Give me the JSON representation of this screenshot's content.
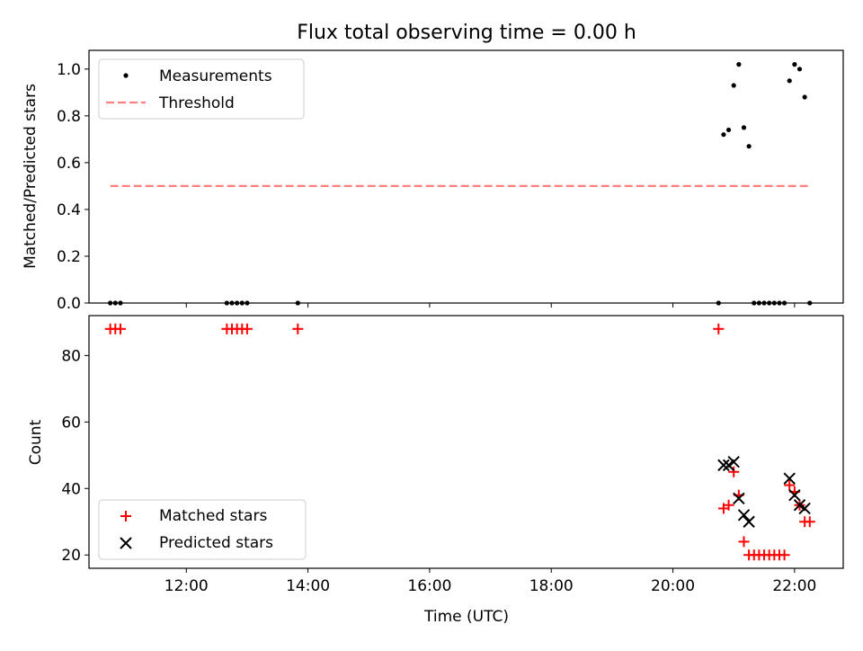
{
  "chart_data": [
    {
      "type": "scatter",
      "title": "Flux total observing time = 0.00 h",
      "xlabel": "",
      "ylabel": "Matched/Predicted stars",
      "xlim": [
        "10:24",
        "22:48"
      ],
      "ylim": [
        0,
        1.08
      ],
      "yticks": [
        0.0,
        0.2,
        0.4,
        0.6,
        0.8,
        1.0
      ],
      "ytick_labels": [
        "0.0",
        "0.2",
        "0.4",
        "0.6",
        "0.8",
        "1.0"
      ],
      "grid": false,
      "legend": {
        "position": "upper-left"
      },
      "series": [
        {
          "name": "Measurements",
          "kind": "dot",
          "color": "#000000",
          "points": [
            [
              "10:45",
              0.0
            ],
            [
              "10:50",
              0.0
            ],
            [
              "10:55",
              0.0
            ],
            [
              "12:40",
              0.0
            ],
            [
              "12:45",
              0.0
            ],
            [
              "12:50",
              0.0
            ],
            [
              "12:55",
              0.0
            ],
            [
              "13:00",
              0.0
            ],
            [
              "13:50",
              0.0
            ],
            [
              "20:45",
              0.0
            ],
            [
              "20:50",
              0.72
            ],
            [
              "20:55",
              0.74
            ],
            [
              "21:00",
              0.93
            ],
            [
              "21:05",
              1.02
            ],
            [
              "21:10",
              0.75
            ],
            [
              "21:15",
              0.67
            ],
            [
              "21:20",
              0.0
            ],
            [
              "21:25",
              0.0
            ],
            [
              "21:30",
              0.0
            ],
            [
              "21:35",
              0.0
            ],
            [
              "21:40",
              0.0
            ],
            [
              "21:45",
              0.0
            ],
            [
              "21:50",
              0.0
            ],
            [
              "21:55",
              0.95
            ],
            [
              "22:00",
              1.02
            ],
            [
              "22:05",
              1.0
            ],
            [
              "22:10",
              0.88
            ],
            [
              "22:15",
              0.0
            ]
          ]
        },
        {
          "name": "Threshold",
          "kind": "dashed-line",
          "color": "#ff7f7f",
          "points": [
            [
              "10:45",
              0.5
            ],
            [
              "22:15",
              0.5
            ]
          ]
        }
      ]
    },
    {
      "type": "scatter",
      "title": "",
      "xlabel": "Time (UTC)",
      "ylabel": "Count",
      "xlim": [
        "10:24",
        "22:48"
      ],
      "ylim": [
        16,
        92
      ],
      "xticks": [
        "12:00",
        "14:00",
        "16:00",
        "18:00",
        "20:00",
        "22:00"
      ],
      "yticks": [
        20,
        40,
        60,
        80
      ],
      "ytick_labels": [
        "20",
        "40",
        "60",
        "80"
      ],
      "grid": false,
      "legend": {
        "position": "lower-left"
      },
      "series": [
        {
          "name": "Matched stars",
          "kind": "plus",
          "color": "#ff0000",
          "points": [
            [
              "10:45",
              88
            ],
            [
              "10:50",
              88
            ],
            [
              "10:55",
              88
            ],
            [
              "12:40",
              88
            ],
            [
              "12:45",
              88
            ],
            [
              "12:50",
              88
            ],
            [
              "12:55",
              88
            ],
            [
              "13:00",
              88
            ],
            [
              "13:50",
              88
            ],
            [
              "20:45",
              88
            ],
            [
              "20:50",
              34
            ],
            [
              "20:55",
              35
            ],
            [
              "21:00",
              45
            ],
            [
              "21:05",
              38
            ],
            [
              "21:10",
              24
            ],
            [
              "21:15",
              20
            ],
            [
              "21:20",
              20
            ],
            [
              "21:25",
              20
            ],
            [
              "21:30",
              20
            ],
            [
              "21:35",
              20
            ],
            [
              "21:40",
              20
            ],
            [
              "21:45",
              20
            ],
            [
              "21:50",
              20
            ],
            [
              "21:55",
              41
            ],
            [
              "22:00",
              39
            ],
            [
              "22:05",
              35
            ],
            [
              "22:10",
              30
            ],
            [
              "22:15",
              30
            ]
          ]
        },
        {
          "name": "Predicted stars",
          "kind": "cross",
          "color": "#000000",
          "points": [
            [
              "20:50",
              47
            ],
            [
              "20:55",
              47
            ],
            [
              "21:00",
              48
            ],
            [
              "21:05",
              37
            ],
            [
              "21:10",
              32
            ],
            [
              "21:15",
              30
            ],
            [
              "21:55",
              43
            ],
            [
              "22:00",
              38
            ],
            [
              "22:05",
              35
            ],
            [
              "22:10",
              34
            ]
          ]
        }
      ]
    }
  ]
}
